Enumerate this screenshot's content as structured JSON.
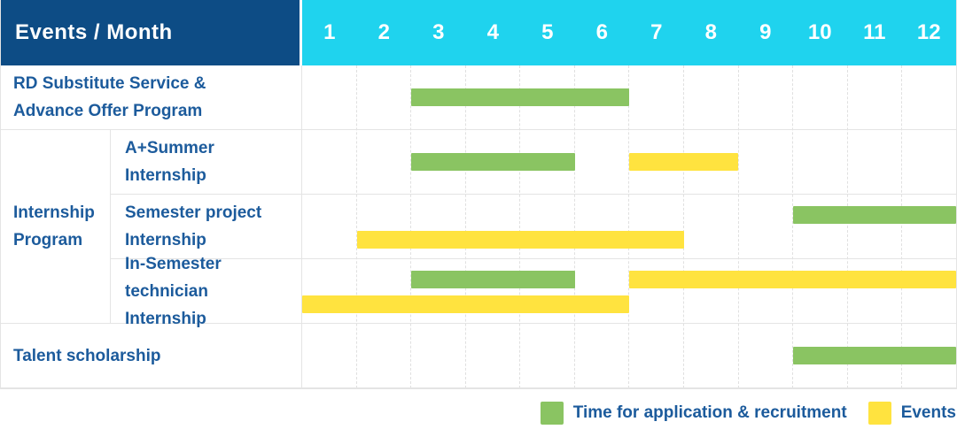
{
  "header_label": "Events / Month",
  "months": [
    "1",
    "2",
    "3",
    "4",
    "5",
    "6",
    "7",
    "8",
    "9",
    "10",
    "11",
    "12"
  ],
  "group_label": [
    "Internship",
    "Program"
  ],
  "rows": [
    {
      "id": "rd-substitute-advance-offer",
      "label": [
        "RD Substitute Service &",
        "Advance Offer Program"
      ],
      "bars": [
        {
          "type": "recruitment",
          "start": 3,
          "end": 6,
          "lane": "center"
        }
      ]
    },
    {
      "id": "a-plus-summer-internship",
      "label": [
        "A+Summer",
        "Internship"
      ],
      "bars": [
        {
          "type": "recruitment",
          "start": 3,
          "end": 5,
          "lane": "center"
        },
        {
          "type": "event",
          "start": 7,
          "end": 8,
          "lane": "center"
        }
      ]
    },
    {
      "id": "semester-project-internship",
      "label": [
        "Semester project",
        "Internship"
      ],
      "bars": [
        {
          "type": "recruitment",
          "start": 10,
          "end": 12,
          "lane": "top"
        },
        {
          "type": "event",
          "start": 2,
          "end": 7,
          "lane": "bottom"
        }
      ]
    },
    {
      "id": "in-semester-technician-internship",
      "label": [
        "In-Semester",
        "technician Internship"
      ],
      "bars": [
        {
          "type": "recruitment",
          "start": 3,
          "end": 5,
          "lane": "top"
        },
        {
          "type": "event",
          "start": 7,
          "end": 12,
          "lane": "top"
        },
        {
          "type": "event",
          "start": 1,
          "end": 6,
          "lane": "bottom"
        }
      ]
    },
    {
      "id": "talent-scholarship",
      "label": [
        "Talent scholarship"
      ],
      "bars": [
        {
          "type": "recruitment",
          "start": 10,
          "end": 12,
          "lane": "center"
        }
      ]
    }
  ],
  "legend": [
    {
      "type": "recruitment",
      "label": "Time for application & recruitment",
      "color": "#8ac462"
    },
    {
      "type": "event",
      "label": "Events",
      "color": "#ffe33f"
    }
  ],
  "colors": {
    "navy": "#0d4c85",
    "cyan": "#1fd3ee",
    "green": "#8ac462",
    "yellow": "#ffe33f",
    "text": "#1c5b9c",
    "grid": "#e4e4e4",
    "dash": "#e0e0e0"
  },
  "chart_data": {
    "type": "bar",
    "subtype": "gantt",
    "title": "Events / Month",
    "xlabel": "Month",
    "x_ticks": [
      1,
      2,
      3,
      4,
      5,
      6,
      7,
      8,
      9,
      10,
      11,
      12
    ],
    "xlim": [
      1,
      12
    ],
    "grid": "dashed-vertical",
    "legend_position": "bottom-right",
    "series_names": [
      "Time for application & recruitment",
      "Events"
    ],
    "tasks": [
      {
        "category": "RD Substitute Service & Advance Offer Program",
        "group": null,
        "intervals": [
          {
            "series": "Time for application & recruitment",
            "start_month": 3,
            "end_month": 6
          }
        ]
      },
      {
        "category": "A+Summer Internship",
        "group": "Internship Program",
        "intervals": [
          {
            "series": "Time for application & recruitment",
            "start_month": 3,
            "end_month": 5
          },
          {
            "series": "Events",
            "start_month": 7,
            "end_month": 8
          }
        ]
      },
      {
        "category": "Semester project Internship",
        "group": "Internship Program",
        "intervals": [
          {
            "series": "Time for application & recruitment",
            "start_month": 10,
            "end_month": 12
          },
          {
            "series": "Events",
            "start_month": 2,
            "end_month": 7
          }
        ]
      },
      {
        "category": "In-Semester technician Internship",
        "group": "Internship Program",
        "intervals": [
          {
            "series": "Time for application & recruitment",
            "start_month": 3,
            "end_month": 5
          },
          {
            "series": "Events",
            "start_month": 7,
            "end_month": 12
          },
          {
            "series": "Events",
            "start_month": 1,
            "end_month": 6
          }
        ]
      },
      {
        "category": "Talent scholarship",
        "group": null,
        "intervals": [
          {
            "series": "Time for application & recruitment",
            "start_month": 10,
            "end_month": 12
          }
        ]
      }
    ]
  }
}
